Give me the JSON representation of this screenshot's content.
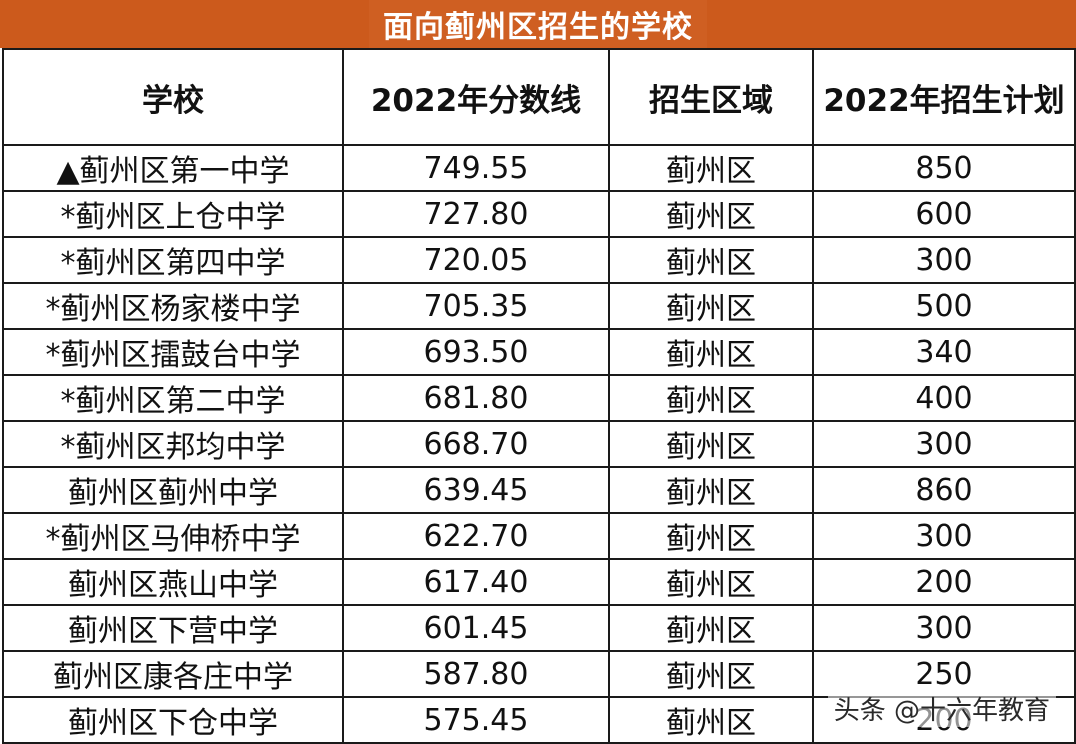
{
  "title": "面向蓟州区招生的学校",
  "headers": [
    "学校",
    "2022年分数线",
    "招生区域",
    "2022年招生计划"
  ],
  "rows": [
    {
      "school": "▲蓟州区第一中学",
      "score": "749.55",
      "region": "蓟州区",
      "plan": "850"
    },
    {
      "school": "*蓟州区上仓中学",
      "score": "727.80",
      "region": "蓟州区",
      "plan": "600"
    },
    {
      "school": "*蓟州区第四中学",
      "score": "720.05",
      "region": "蓟州区",
      "plan": "300"
    },
    {
      "school": "*蓟州区杨家楼中学",
      "score": "705.35",
      "region": "蓟州区",
      "plan": "500"
    },
    {
      "school": "*蓟州区擂鼓台中学",
      "score": "693.50",
      "region": "蓟州区",
      "plan": "340"
    },
    {
      "school": "*蓟州区第二中学",
      "score": "681.80",
      "region": "蓟州区",
      "plan": "400"
    },
    {
      "school": "*蓟州区邦均中学",
      "score": "668.70",
      "region": "蓟州区",
      "plan": "300"
    },
    {
      "school": "蓟州区蓟州中学",
      "score": "639.45",
      "region": "蓟州区",
      "plan": "860"
    },
    {
      "school": "*蓟州区马伸桥中学",
      "score": "622.70",
      "region": "蓟州区",
      "plan": "300"
    },
    {
      "school": "蓟州区燕山中学",
      "score": "617.40",
      "region": "蓟州区",
      "plan": "200"
    },
    {
      "school": "蓟州区下营中学",
      "score": "601.45",
      "region": "蓟州区",
      "plan": "300"
    },
    {
      "school": "蓟州区康各庄中学",
      "score": "587.80",
      "region": "蓟州区",
      "plan": "250"
    },
    {
      "school": "蓟州区下仓中学",
      "score": "575.45",
      "region": "蓟州区",
      "plan": "200"
    }
  ],
  "watermark": "头条 @十六年教育"
}
